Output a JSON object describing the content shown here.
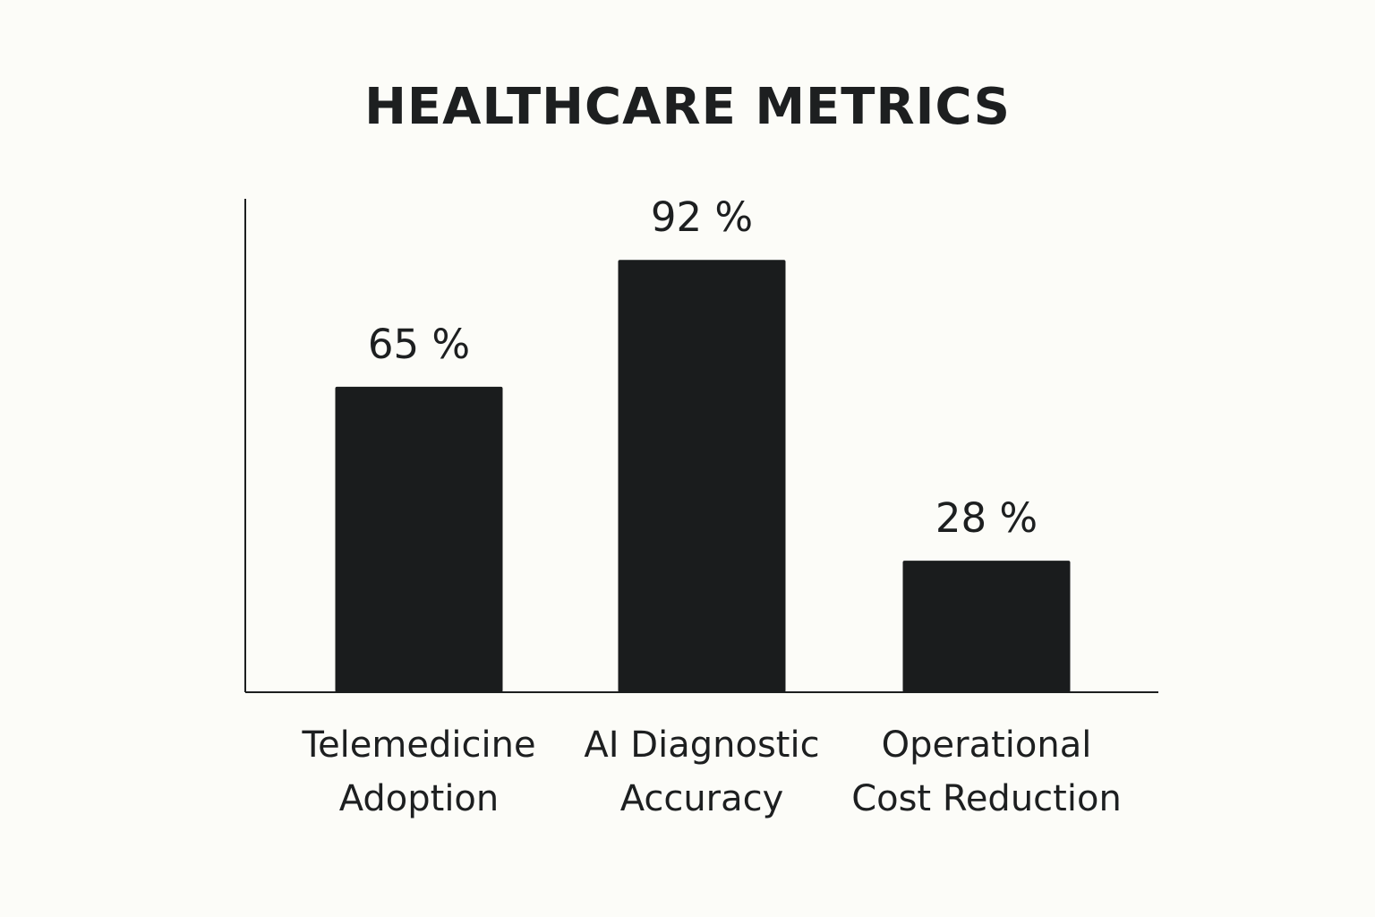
{
  "chart_data": {
    "type": "bar",
    "title": "HEALTHCARE METRICS",
    "categories": [
      [
        "Telemedicine",
        "Adoption"
      ],
      [
        "AI Diagnostic",
        "Accuracy"
      ],
      [
        "Operational",
        "Cost Reduction"
      ]
    ],
    "values": [
      65,
      92,
      28
    ],
    "value_labels": [
      "65 %",
      "92 %",
      "28 %"
    ],
    "ylim": [
      0,
      105
    ],
    "grid": false,
    "legend": "none",
    "bar_color": "#1a1c1d",
    "axis_color": "#1d1f20",
    "background_color": "#fcfcf8"
  }
}
